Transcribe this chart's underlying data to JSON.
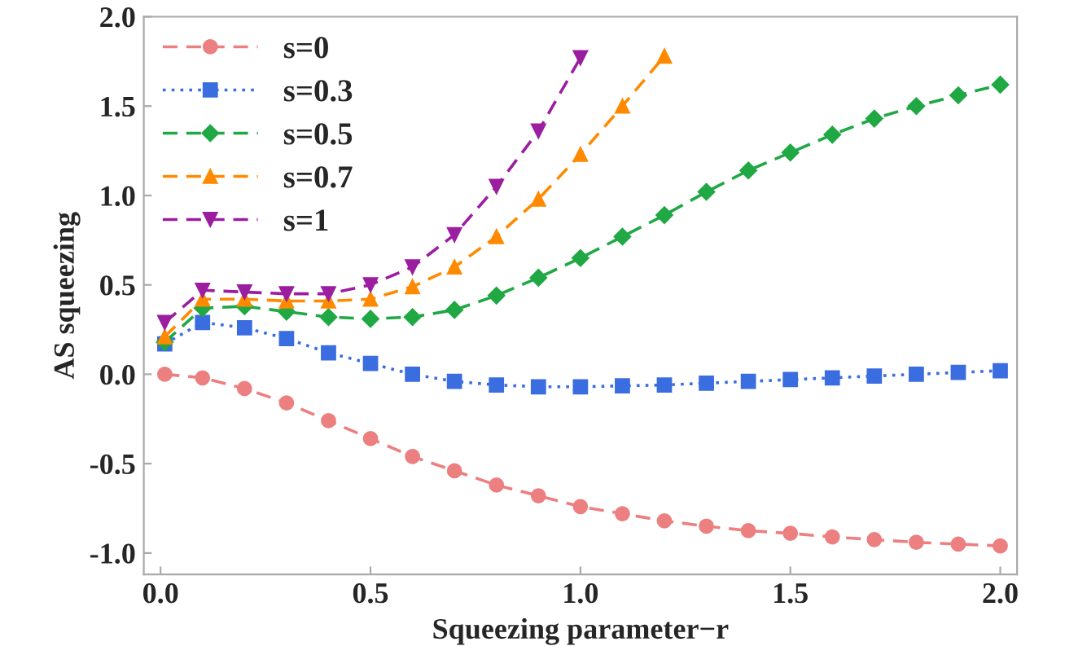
{
  "chart_data": {
    "type": "line",
    "xlabel": "Squeezing parameter−r",
    "ylabel": "AS squeezing",
    "x": [
      0.01,
      0.1,
      0.2,
      0.3,
      0.4,
      0.5,
      0.6,
      0.7,
      0.8,
      0.9,
      1.0,
      1.1,
      1.2,
      1.3,
      1.4,
      1.5,
      1.6,
      1.7,
      1.8,
      1.9,
      2.0
    ],
    "series": [
      {
        "name": "s=0",
        "color": "#ec7f80",
        "marker": "circle",
        "line_style": "dashed",
        "values": [
          0.0,
          -0.02,
          -0.08,
          -0.16,
          -0.26,
          -0.36,
          -0.46,
          -0.54,
          -0.62,
          -0.68,
          -0.74,
          -0.78,
          -0.82,
          -0.85,
          -0.875,
          -0.89,
          -0.91,
          -0.925,
          -0.94,
          -0.95,
          -0.96
        ]
      },
      {
        "name": "s=0.3",
        "color": "#3a6de0",
        "marker": "square",
        "line_style": "dotted",
        "values": [
          0.17,
          0.29,
          0.26,
          0.2,
          0.12,
          0.06,
          0.0,
          -0.04,
          -0.06,
          -0.07,
          -0.07,
          -0.065,
          -0.06,
          -0.05,
          -0.04,
          -0.03,
          -0.02,
          -0.01,
          0.0,
          0.01,
          0.02
        ]
      },
      {
        "name": "s=0.5",
        "color": "#20a844",
        "marker": "diamond",
        "line_style": "dashed",
        "values": [
          0.18,
          0.37,
          0.38,
          0.35,
          0.32,
          0.31,
          0.32,
          0.36,
          0.44,
          0.54,
          0.65,
          0.77,
          0.89,
          1.02,
          1.14,
          1.24,
          1.34,
          1.43,
          1.5,
          1.56,
          1.62
        ]
      },
      {
        "name": "s=0.7",
        "color": "#ff8a00",
        "marker": "triangle",
        "line_style": "dashed",
        "values": [
          0.21,
          0.42,
          0.42,
          0.41,
          0.41,
          0.42,
          0.49,
          0.6,
          0.77,
          0.98,
          1.23,
          1.5,
          1.78,
          null,
          null,
          null,
          null,
          null,
          null,
          null,
          null
        ]
      },
      {
        "name": "s=1",
        "color": "#9b1ea0",
        "marker": "triangle_down",
        "line_style": "dashed",
        "values": [
          0.29,
          0.47,
          0.46,
          0.45,
          0.45,
          0.5,
          0.6,
          0.78,
          1.05,
          1.36,
          1.77,
          null,
          null,
          null,
          null,
          null,
          null,
          null,
          null,
          null,
          null
        ]
      }
    ],
    "xlim": [
      -0.04,
      2.04
    ],
    "ylim": [
      -1.12,
      2.0
    ],
    "xticks": [
      {
        "value": 0,
        "label": "0.0"
      },
      {
        "value": 0.5,
        "label": "0.5"
      },
      {
        "value": 1,
        "label": "1.0"
      },
      {
        "value": 1.5,
        "label": "1.5"
      },
      {
        "value": 2,
        "label": "2.0"
      }
    ],
    "yticks": [
      {
        "value": -1,
        "label": "-1.0"
      },
      {
        "value": -0.5,
        "label": "-0.5"
      },
      {
        "value": 0,
        "label": "0.0"
      },
      {
        "value": 0.5,
        "label": "0.5"
      },
      {
        "value": 1,
        "label": "1.0"
      },
      {
        "value": 1.5,
        "label": "1.5"
      },
      {
        "value": 2,
        "label": "2.0"
      }
    ],
    "legend": "top left",
    "grid": false
  }
}
